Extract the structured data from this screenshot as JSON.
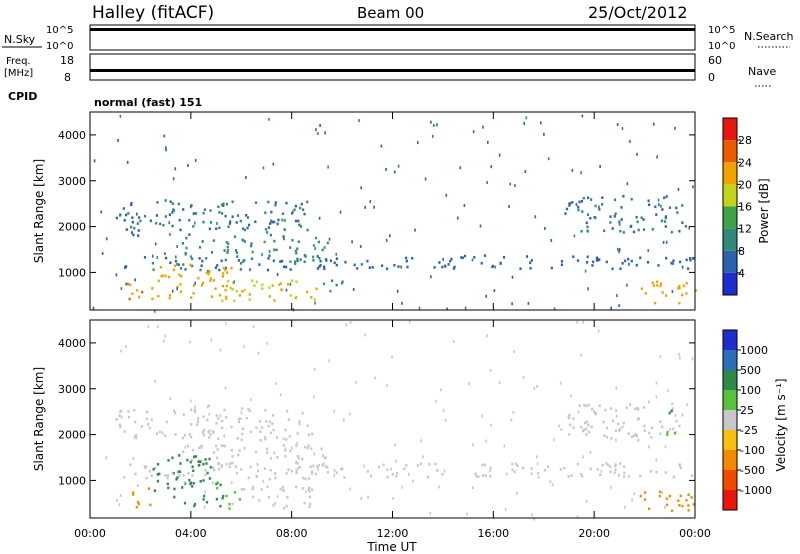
{
  "header": {
    "station": "Halley (fitACF)",
    "beam": "Beam 00",
    "date": "25/Oct/2012"
  },
  "noise_panel": {
    "left_label": "N.Sky",
    "right_label": "N.Search",
    "left_ticks": [
      "10^5",
      "10^0"
    ],
    "right_ticks": [
      "10^5",
      "10^0"
    ]
  },
  "freq_panel": {
    "left_label_1": "Freq.",
    "left_label_2": "[MHz]",
    "right_label": "Nave",
    "left_ticks": [
      "18",
      "8"
    ],
    "right_ticks": [
      "60",
      "0"
    ]
  },
  "cpid_panel": {
    "label": "CPID",
    "value": "normal (fast) 151"
  },
  "chart_data": [
    {
      "type": "heatmap",
      "name": "power",
      "ylabel": "Slant Range [km]",
      "ylim": [
        180,
        4500
      ],
      "yticks": [
        "1000",
        "2000",
        "3000",
        "4000"
      ],
      "xlim": [
        0,
        24
      ],
      "colorbar_label": "Power [dB]",
      "colorbar_ticks": [
        "4",
        "8",
        "12",
        "16",
        "20",
        "24",
        "28"
      ],
      "colors": [
        "#1f2ccf",
        "#2c62b0",
        "#2f8a7a",
        "#3fa34a",
        "#c4d21c",
        "#f2a300",
        "#ee5a00",
        "#e8160c"
      ],
      "blobs": [
        {
          "t0": 1.3,
          "t1": 11.0,
          "r0": 1050,
          "r1": 1380,
          "v": 7
        },
        {
          "t0": 11.0,
          "t1": 24.0,
          "r0": 1100,
          "r1": 1400,
          "v": 6
        },
        {
          "t0": 3.6,
          "t1": 9.4,
          "r0": 1250,
          "r1": 1800,
          "v": 11
        },
        {
          "t0": 1.2,
          "t1": 2.2,
          "r0": 400,
          "r1": 800,
          "v": 24
        },
        {
          "t0": 2.4,
          "t1": 5.6,
          "r0": 450,
          "r1": 1200,
          "v": 22
        },
        {
          "t0": 5.2,
          "t1": 9.2,
          "r0": 400,
          "r1": 900,
          "v": 20
        },
        {
          "t0": 1.0,
          "t1": 8.8,
          "r0": 1800,
          "r1": 2600,
          "v": 8
        },
        {
          "t0": 18.8,
          "t1": 23.6,
          "r0": 1900,
          "r1": 2700,
          "v": 8
        },
        {
          "t0": 21.8,
          "t1": 24.0,
          "r0": 350,
          "r1": 850,
          "v": 22
        },
        {
          "t0": 8.9,
          "t1": 10.2,
          "r0": 600,
          "r1": 850,
          "v": 12
        }
      ]
    },
    {
      "type": "heatmap",
      "name": "velocity",
      "ylabel": "Slant Range [km]",
      "ylim": [
        180,
        4500
      ],
      "yticks": [
        "1000",
        "2000",
        "3000",
        "4000"
      ],
      "xlim": [
        0,
        24
      ],
      "xticks": [
        "00:00",
        "04:00",
        "08:00",
        "12:00",
        "16:00",
        "20:00",
        "00:00"
      ],
      "xlabel": "Time UT",
      "colorbar_label": "Velocity [m s⁻¹]",
      "colorbar_ticks": [
        "1000",
        "500",
        "100",
        "25",
        "-25",
        "-100",
        "-500",
        "-1000"
      ],
      "colors": [
        "#1f2ccf",
        "#2d6dba",
        "#2e8a4b",
        "#58c23b",
        "#c8c8c8",
        "#f7c010",
        "#f58a00",
        "#ef4a00",
        "#e8160c"
      ],
      "blobs": [
        {
          "t0": 1.3,
          "t1": 11.0,
          "r0": 1050,
          "r1": 1380,
          "v": 0
        },
        {
          "t0": 11.0,
          "t1": 24.0,
          "r0": 1100,
          "r1": 1400,
          "v": 0
        },
        {
          "t0": 3.6,
          "t1": 9.4,
          "r0": 1250,
          "r1": 1800,
          "v": 0
        },
        {
          "t0": 1.6,
          "t1": 2.4,
          "r0": 400,
          "r1": 900,
          "v": -300
        },
        {
          "t0": 2.4,
          "t1": 4.8,
          "r0": 450,
          "r1": 1600,
          "v": 300
        },
        {
          "t0": 4.8,
          "t1": 6.0,
          "r0": 400,
          "r1": 1000,
          "v": 100
        },
        {
          "t0": 5.6,
          "t1": 8.8,
          "r0": 400,
          "r1": 900,
          "v": 0
        },
        {
          "t0": 1.0,
          "t1": 8.8,
          "r0": 1900,
          "r1": 2600,
          "v": 0
        },
        {
          "t0": 18.8,
          "t1": 23.6,
          "r0": 1900,
          "r1": 2700,
          "v": 0
        },
        {
          "t0": 21.8,
          "t1": 24.0,
          "r0": 350,
          "r1": 850,
          "v": -200
        },
        {
          "t0": 22.8,
          "t1": 23.3,
          "r0": 2000,
          "r1": 2600,
          "v": 100
        }
      ]
    }
  ]
}
